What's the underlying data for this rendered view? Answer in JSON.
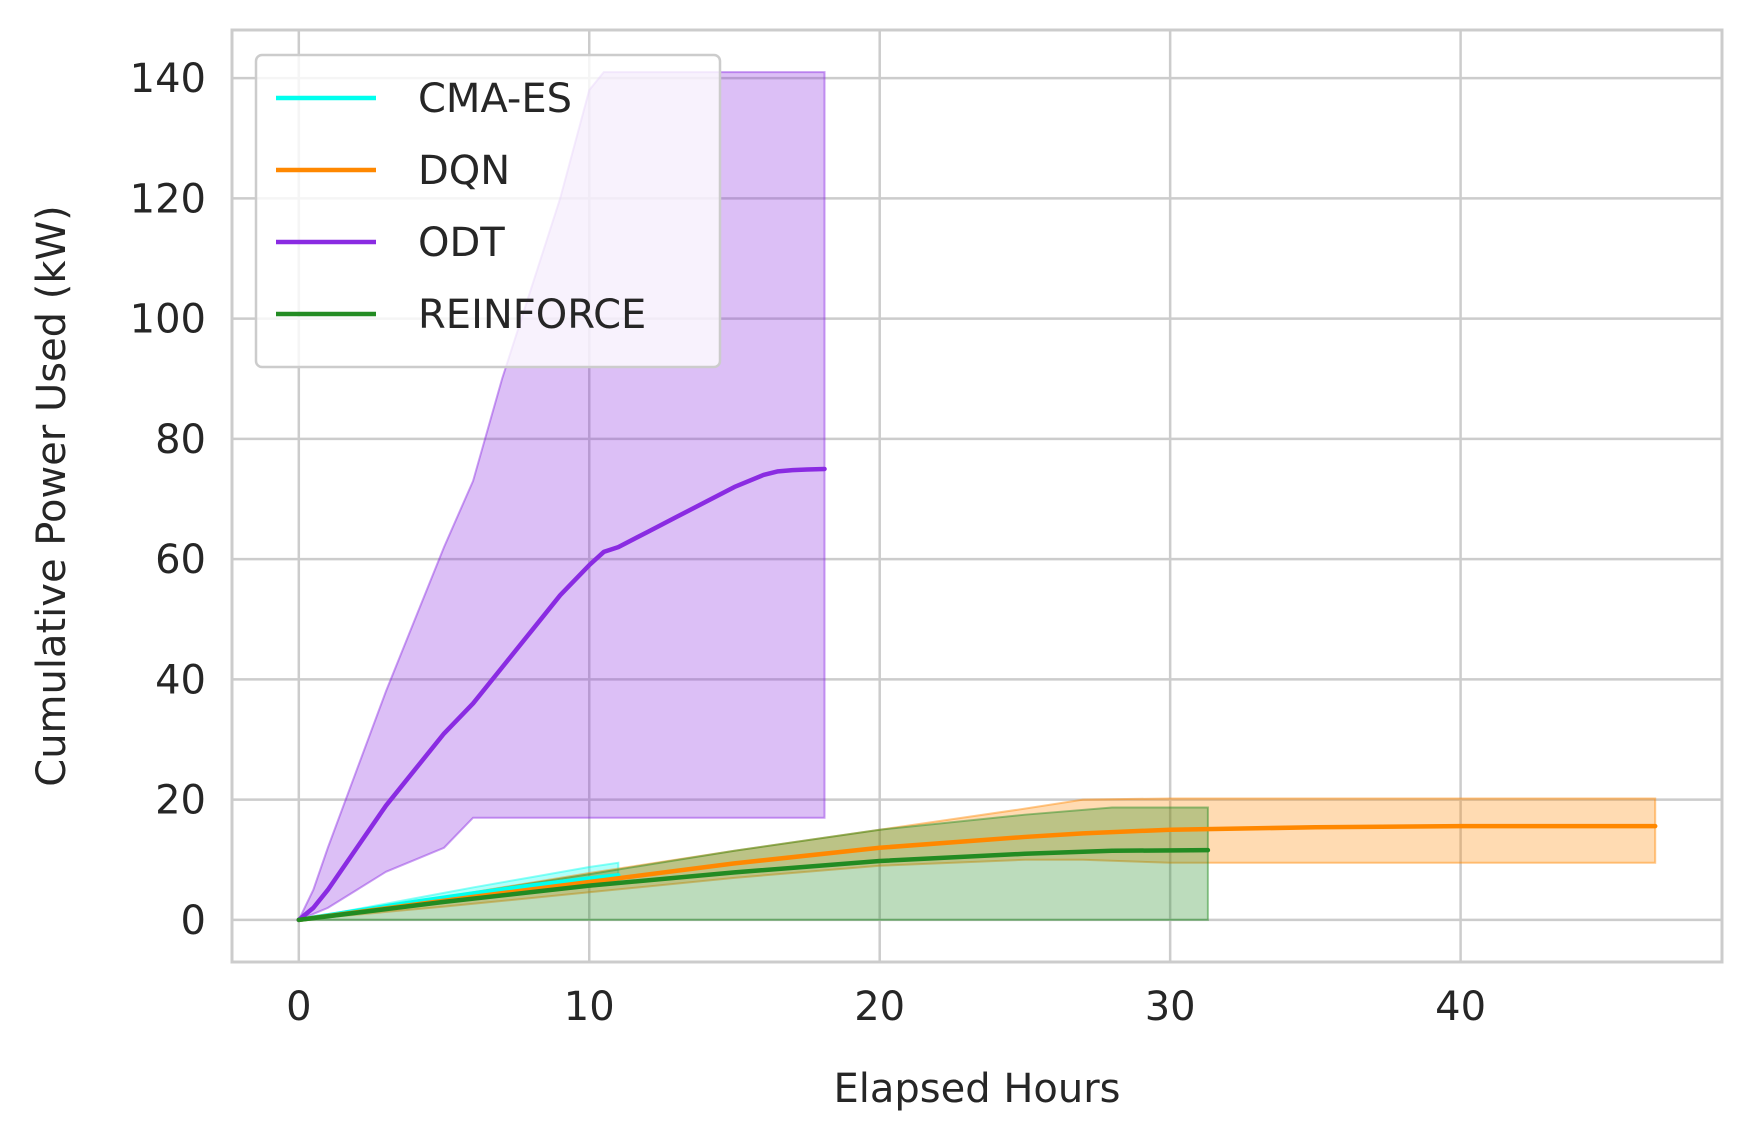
{
  "chart_data": {
    "type": "line",
    "title": "",
    "xlabel": "Elapsed Hours",
    "ylabel": "Cumulative Power Used (kW)",
    "xlim": [
      -2.3,
      49
    ],
    "ylim": [
      -7,
      148
    ],
    "xticks": [
      0,
      10,
      20,
      30,
      40
    ],
    "yticks": [
      0,
      20,
      40,
      60,
      80,
      100,
      120,
      140
    ],
    "grid": true,
    "legend_position": "upper-left",
    "series": [
      {
        "name": "CMA-ES",
        "color": "#00FFEE",
        "x": [
          0,
          2,
          4,
          6,
          8,
          10,
          11
        ],
        "y": [
          0,
          1.5,
          3.0,
          4.4,
          5.7,
          6.9,
          7.4
        ],
        "band_upper": [
          0,
          1.8,
          3.6,
          5.4,
          7.1,
          8.8,
          9.5
        ],
        "band_lower": [
          0,
          1.2,
          2.4,
          3.5,
          4.5,
          5.5,
          6.0
        ]
      },
      {
        "name": "DQN",
        "color": "#FF8800",
        "x": [
          0,
          5,
          10,
          15,
          20,
          25,
          27,
          30,
          35,
          40,
          46.7
        ],
        "y": [
          0,
          3.2,
          6.3,
          9.4,
          12.0,
          13.8,
          14.4,
          15.0,
          15.4,
          15.6,
          15.6
        ],
        "band_upper": [
          0,
          3.8,
          7.8,
          11.5,
          15.0,
          18.5,
          20.0,
          20.2,
          20.2,
          20.2,
          20.2
        ],
        "band_lower": [
          0,
          2.2,
          4.6,
          7.0,
          9.0,
          10.0,
          10.0,
          9.5,
          9.5,
          9.5,
          9.5
        ]
      },
      {
        "name": "ODT",
        "color": "#8A2BE2",
        "x": [
          0,
          0.5,
          1,
          2,
          3,
          4,
          5,
          6,
          7,
          8,
          9,
          10,
          10.5,
          11,
          12,
          13,
          14,
          15,
          16,
          16.5,
          17,
          17.5,
          18.1
        ],
        "y": [
          0,
          2,
          5,
          12,
          19,
          25,
          31,
          36,
          42,
          48,
          54,
          59,
          61.2,
          62,
          64.5,
          67,
          69.5,
          72,
          74,
          74.6,
          74.8,
          74.9,
          75
        ],
        "band_upper": [
          0,
          5,
          12,
          25,
          38,
          50,
          62,
          73,
          90,
          105,
          120,
          138,
          141,
          141,
          141,
          141,
          141,
          141,
          141,
          141,
          141,
          141,
          141
        ],
        "band_lower": [
          0,
          1,
          2,
          5,
          8,
          10,
          12,
          17,
          17,
          17,
          17,
          17,
          17,
          17,
          17,
          17,
          17,
          17,
          17,
          17,
          17,
          17,
          17
        ]
      },
      {
        "name": "REINFORCE",
        "color": "#228B22",
        "x": [
          0,
          5,
          10,
          15,
          20,
          25,
          28,
          31.3
        ],
        "y": [
          0,
          3.0,
          5.7,
          7.9,
          9.8,
          11.0,
          11.5,
          11.6
        ],
        "band_upper": [
          0,
          3.8,
          7.6,
          11.5,
          15.0,
          17.5,
          18.7,
          18.7
        ],
        "band_lower": [
          0,
          0,
          0,
          0,
          0,
          0,
          0,
          0
        ]
      }
    ]
  }
}
